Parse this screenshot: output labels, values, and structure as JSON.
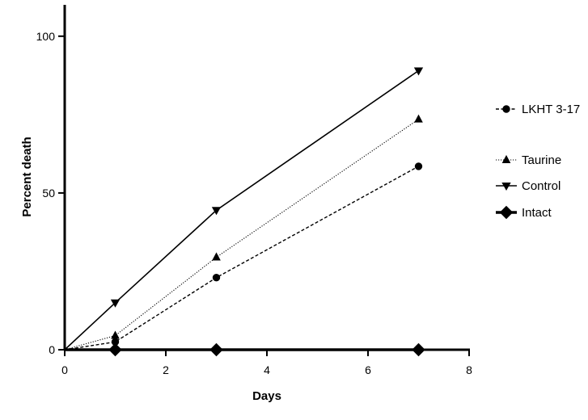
{
  "chart_data": {
    "type": "line",
    "title": "",
    "xlabel": "Days",
    "ylabel": "Percent death",
    "xlim": [
      0,
      8
    ],
    "ylim": [
      0,
      110
    ],
    "xticks": [
      "0",
      "2",
      "4",
      "6",
      "8"
    ],
    "yticks": [
      "0",
      "50",
      "100"
    ],
    "x": [
      0,
      1,
      3,
      7
    ],
    "grid": false,
    "legend_position": "right",
    "series": [
      {
        "name": "LKHT 3-17",
        "marker": "circle",
        "line_style": "dashed",
        "color": "#000000",
        "values": [
          0,
          2.5,
          23,
          58.5
        ]
      },
      {
        "name": "Taurine",
        "marker": "triangle-up",
        "line_style": "dotted",
        "color": "#000000",
        "values": [
          0,
          4.5,
          29.5,
          73.5
        ]
      },
      {
        "name": "Control",
        "marker": "triangle-down",
        "line_style": "solid",
        "color": "#000000",
        "values": [
          0,
          15,
          44.5,
          89
        ]
      },
      {
        "name": "Intact",
        "marker": "diamond",
        "line_style": "solid-thick",
        "color": "#000000",
        "values": [
          0,
          0,
          0,
          0
        ]
      }
    ]
  }
}
